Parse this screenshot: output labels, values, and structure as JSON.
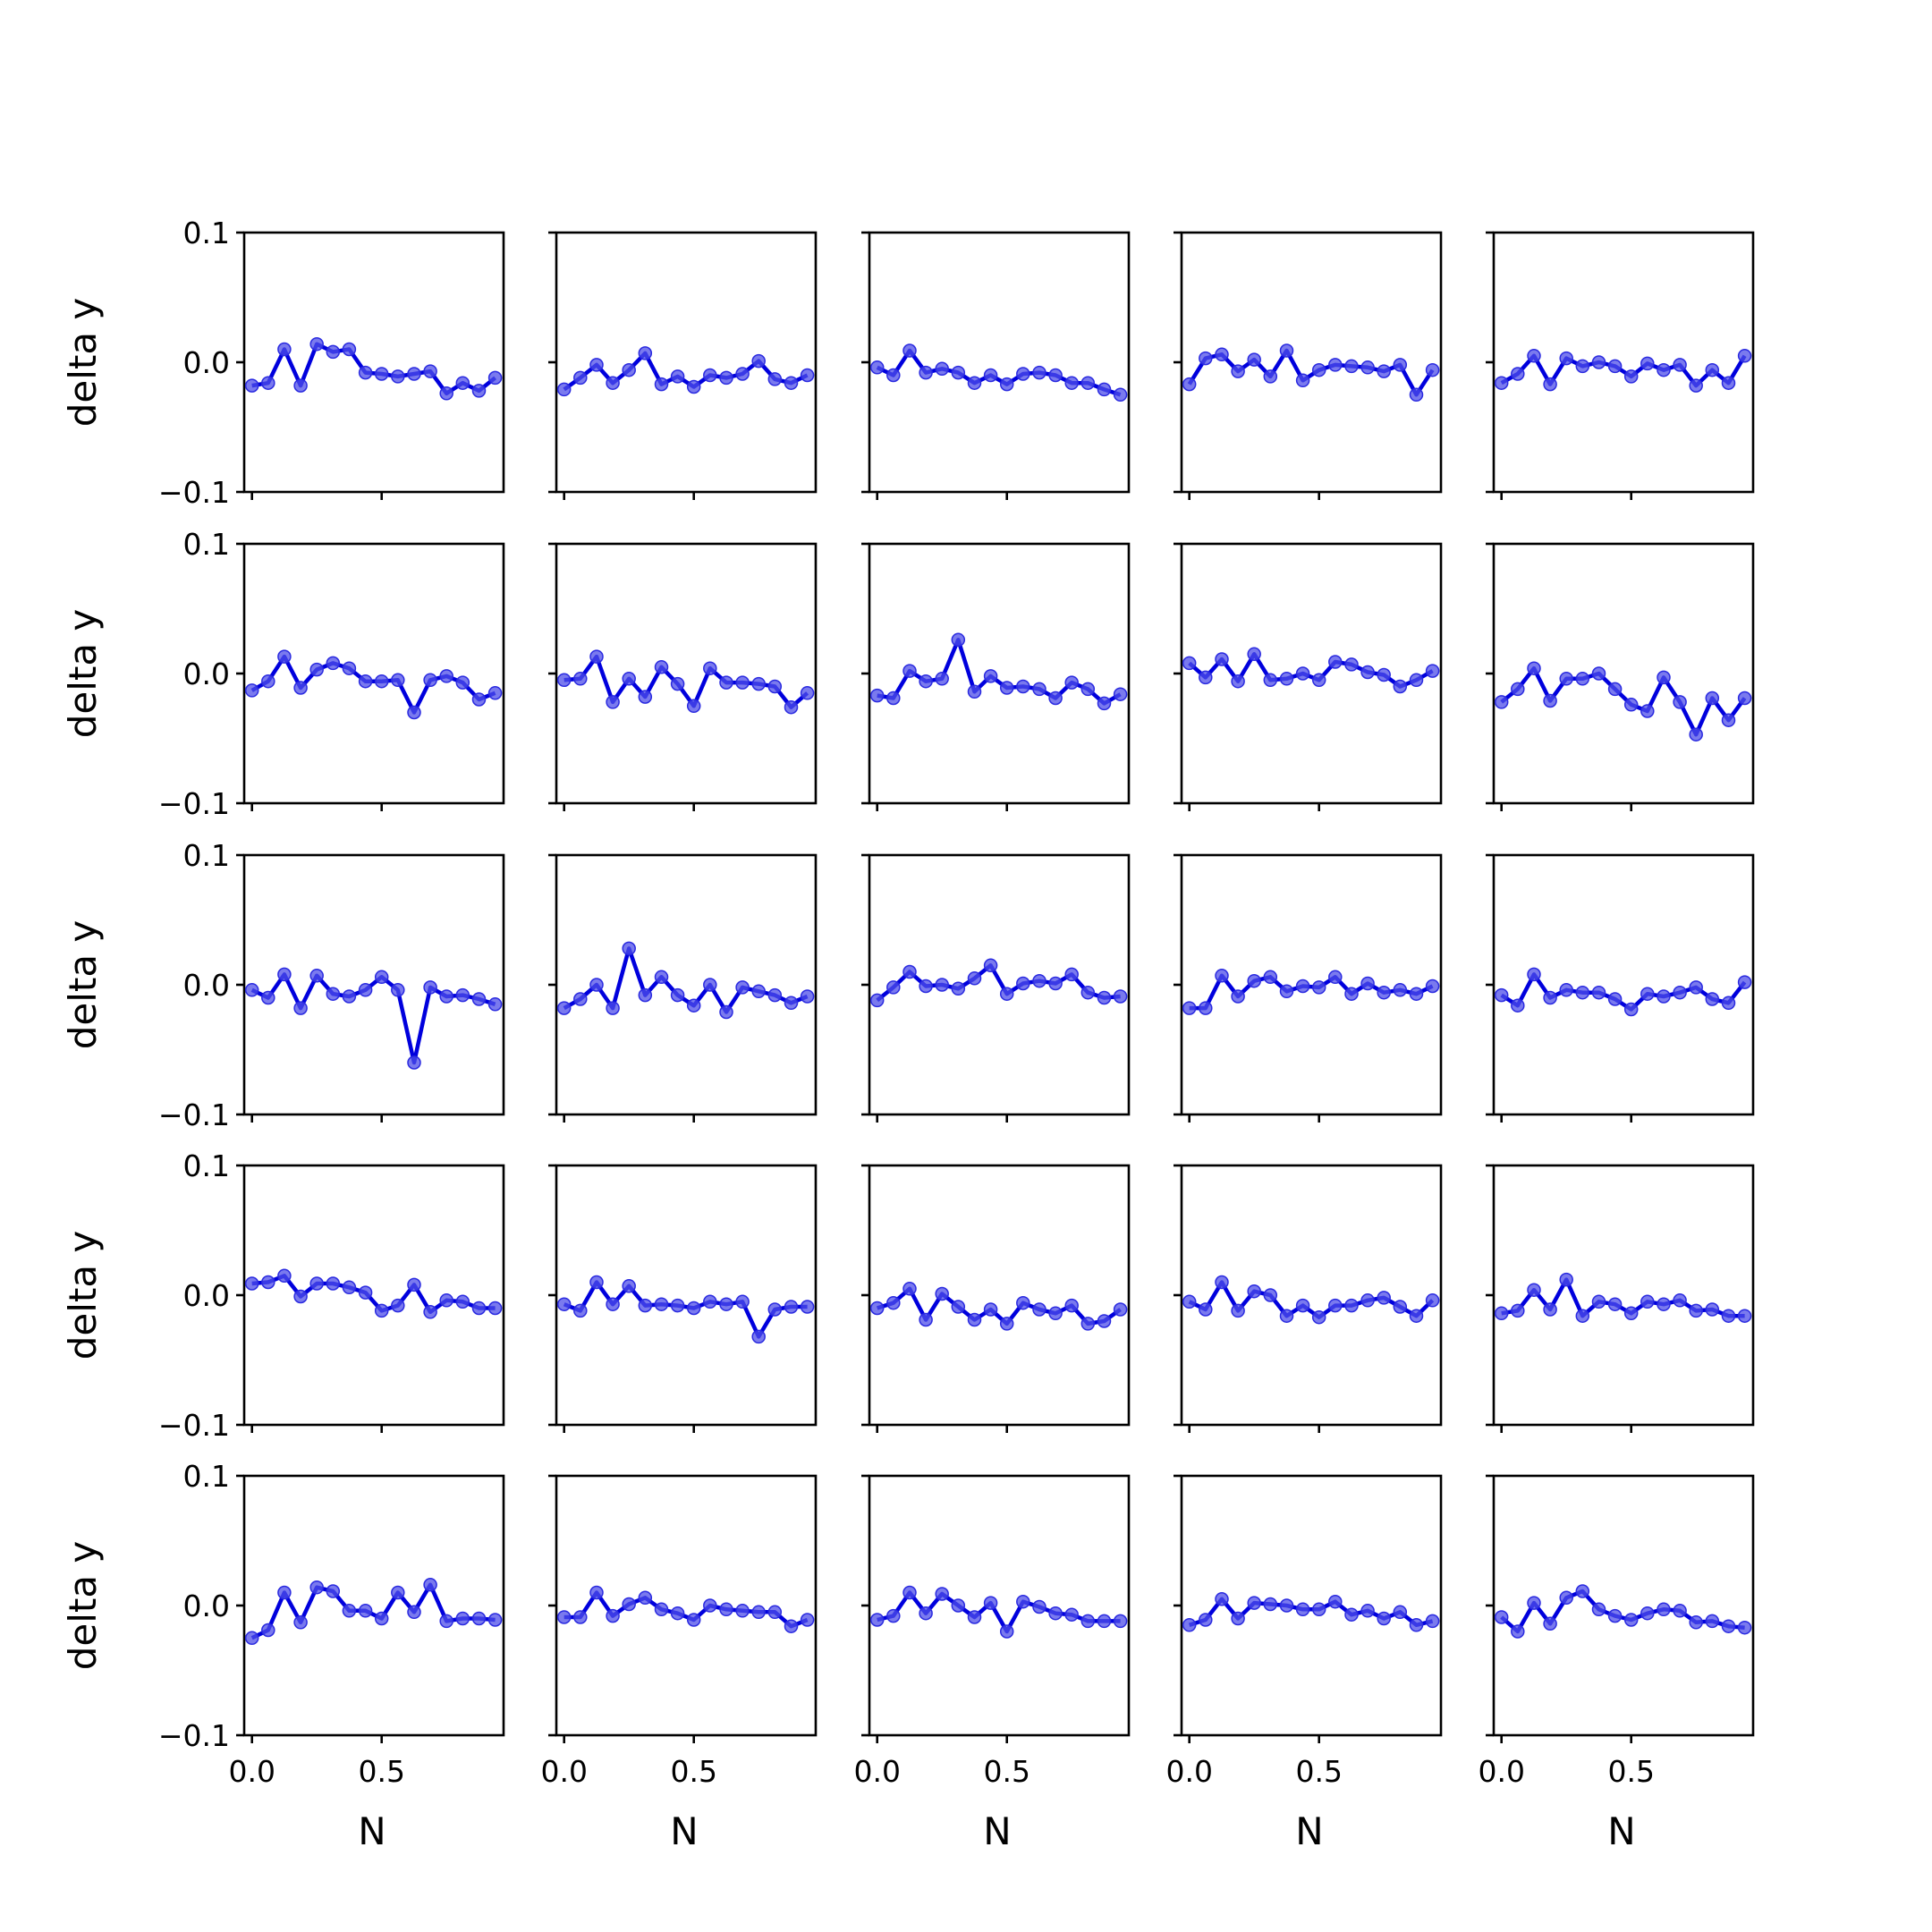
{
  "chart_data": {
    "type": "line",
    "grid": false,
    "layout": "5x5 small multiples, shared axes",
    "xlabel": "N",
    "ylabel": "delta y",
    "xlim": [
      -0.03,
      0.97
    ],
    "ylim": [
      -0.1,
      0.1
    ],
    "xticks": [
      0.0,
      0.5
    ],
    "xtick_labels": [
      "0.0",
      "0.5"
    ],
    "yticks": [
      0.1,
      0.0,
      -0.1
    ],
    "ytick_labels": [
      "0.1",
      "0.0",
      "−0.1"
    ],
    "x": [
      0.0,
      0.0625,
      0.125,
      0.1875,
      0.25,
      0.3125,
      0.375,
      0.4375,
      0.5,
      0.5625,
      0.625,
      0.6875,
      0.75,
      0.8125,
      0.875,
      0.9375
    ],
    "colors": {
      "line": "#0000dd",
      "marker": "#4d4de8"
    },
    "panels": [
      {
        "values": [
          -0.018,
          -0.016,
          0.01,
          -0.018,
          0.014,
          0.008,
          0.01,
          -0.008,
          -0.009,
          -0.011,
          -0.009,
          -0.007,
          -0.024,
          -0.016,
          -0.022,
          -0.012
        ]
      },
      {
        "values": [
          -0.021,
          -0.012,
          -0.002,
          -0.016,
          -0.006,
          0.007,
          -0.017,
          -0.011,
          -0.019,
          -0.01,
          -0.012,
          -0.009,
          0.001,
          -0.013,
          -0.016,
          -0.01
        ]
      },
      {
        "values": [
          -0.004,
          -0.01,
          0.009,
          -0.008,
          -0.005,
          -0.008,
          -0.016,
          -0.01,
          -0.017,
          -0.009,
          -0.008,
          -0.01,
          -0.016,
          -0.016,
          -0.021,
          -0.025
        ]
      },
      {
        "values": [
          -0.017,
          0.003,
          0.006,
          -0.007,
          0.002,
          -0.011,
          0.009,
          -0.014,
          -0.006,
          -0.002,
          -0.003,
          -0.004,
          -0.007,
          -0.002,
          -0.025,
          -0.006
        ]
      },
      {
        "values": [
          -0.016,
          -0.009,
          0.005,
          -0.017,
          0.003,
          -0.003,
          0.0,
          -0.003,
          -0.011,
          -0.001,
          -0.006,
          -0.002,
          -0.018,
          -0.006,
          -0.016,
          0.005
        ]
      },
      {
        "values": [
          -0.013,
          -0.006,
          0.013,
          -0.011,
          0.003,
          0.008,
          0.004,
          -0.006,
          -0.006,
          -0.005,
          -0.03,
          -0.005,
          -0.002,
          -0.007,
          -0.02,
          -0.015
        ]
      },
      {
        "values": [
          -0.005,
          -0.004,
          0.013,
          -0.022,
          -0.004,
          -0.018,
          0.005,
          -0.008,
          -0.025,
          0.004,
          -0.007,
          -0.007,
          -0.008,
          -0.01,
          -0.026,
          -0.015
        ]
      },
      {
        "values": [
          -0.017,
          -0.019,
          0.002,
          -0.006,
          -0.004,
          0.026,
          -0.014,
          -0.002,
          -0.011,
          -0.01,
          -0.012,
          -0.019,
          -0.007,
          -0.012,
          -0.023,
          -0.016
        ]
      },
      {
        "values": [
          0.008,
          -0.003,
          0.011,
          -0.006,
          0.015,
          -0.005,
          -0.004,
          0.0,
          -0.005,
          0.009,
          0.007,
          0.001,
          -0.001,
          -0.01,
          -0.005,
          0.002
        ]
      },
      {
        "values": [
          -0.022,
          -0.012,
          0.004,
          -0.021,
          -0.004,
          -0.004,
          0.0,
          -0.012,
          -0.024,
          -0.029,
          -0.003,
          -0.022,
          -0.047,
          -0.019,
          -0.036,
          -0.019
        ]
      },
      {
        "values": [
          -0.004,
          -0.01,
          0.008,
          -0.018,
          0.007,
          -0.007,
          -0.009,
          -0.004,
          0.006,
          -0.004,
          -0.06,
          -0.002,
          -0.009,
          -0.008,
          -0.011,
          -0.015
        ]
      },
      {
        "values": [
          -0.018,
          -0.011,
          0.0,
          -0.018,
          0.028,
          -0.008,
          0.006,
          -0.008,
          -0.016,
          0.0,
          -0.021,
          -0.002,
          -0.005,
          -0.008,
          -0.014,
          -0.009
        ]
      },
      {
        "values": [
          -0.012,
          -0.002,
          0.01,
          -0.001,
          0.0,
          -0.003,
          0.005,
          0.015,
          -0.007,
          0.001,
          0.003,
          0.001,
          0.008,
          -0.006,
          -0.01,
          -0.009
        ]
      },
      {
        "values": [
          -0.018,
          -0.018,
          0.007,
          -0.009,
          0.003,
          0.006,
          -0.005,
          -0.001,
          -0.002,
          0.006,
          -0.007,
          0.001,
          -0.006,
          -0.004,
          -0.007,
          -0.001
        ]
      },
      {
        "values": [
          -0.008,
          -0.016,
          0.008,
          -0.01,
          -0.004,
          -0.006,
          -0.006,
          -0.011,
          -0.019,
          -0.007,
          -0.009,
          -0.006,
          -0.002,
          -0.011,
          -0.014,
          0.002
        ]
      },
      {
        "values": [
          0.009,
          0.01,
          0.015,
          -0.001,
          0.009,
          0.009,
          0.006,
          0.002,
          -0.012,
          -0.008,
          0.008,
          -0.013,
          -0.004,
          -0.005,
          -0.01,
          -0.01
        ]
      },
      {
        "values": [
          -0.007,
          -0.012,
          0.01,
          -0.007,
          0.007,
          -0.008,
          -0.007,
          -0.008,
          -0.01,
          -0.005,
          -0.007,
          -0.005,
          -0.032,
          -0.011,
          -0.009,
          -0.009
        ]
      },
      {
        "values": [
          -0.01,
          -0.006,
          0.005,
          -0.019,
          0.001,
          -0.009,
          -0.019,
          -0.011,
          -0.022,
          -0.006,
          -0.011,
          -0.014,
          -0.008,
          -0.022,
          -0.02,
          -0.011
        ]
      },
      {
        "values": [
          -0.005,
          -0.011,
          0.01,
          -0.012,
          0.003,
          0.0,
          -0.016,
          -0.008,
          -0.017,
          -0.008,
          -0.008,
          -0.004,
          -0.002,
          -0.009,
          -0.016,
          -0.004
        ]
      },
      {
        "values": [
          -0.014,
          -0.012,
          0.004,
          -0.011,
          0.012,
          -0.016,
          -0.005,
          -0.007,
          -0.014,
          -0.005,
          -0.007,
          -0.004,
          -0.012,
          -0.011,
          -0.016,
          -0.016
        ]
      },
      {
        "values": [
          -0.025,
          -0.019,
          0.01,
          -0.013,
          0.014,
          0.011,
          -0.004,
          -0.004,
          -0.01,
          0.01,
          -0.005,
          0.016,
          -0.012,
          -0.01,
          -0.01,
          -0.011
        ]
      },
      {
        "values": [
          -0.009,
          -0.009,
          0.01,
          -0.008,
          0.001,
          0.006,
          -0.003,
          -0.006,
          -0.011,
          0.0,
          -0.003,
          -0.004,
          -0.005,
          -0.005,
          -0.016,
          -0.011
        ]
      },
      {
        "values": [
          -0.011,
          -0.008,
          0.01,
          -0.006,
          0.009,
          0.0,
          -0.009,
          0.002,
          -0.02,
          0.003,
          -0.001,
          -0.006,
          -0.007,
          -0.012,
          -0.012,
          -0.012
        ]
      },
      {
        "values": [
          -0.015,
          -0.011,
          0.005,
          -0.01,
          0.002,
          0.001,
          0.0,
          -0.003,
          -0.003,
          0.003,
          -0.007,
          -0.004,
          -0.01,
          -0.005,
          -0.015,
          -0.012
        ]
      },
      {
        "values": [
          -0.009,
          -0.02,
          0.002,
          -0.014,
          0.006,
          0.011,
          -0.003,
          -0.008,
          -0.011,
          -0.006,
          -0.003,
          -0.004,
          -0.013,
          -0.012,
          -0.016,
          -0.017
        ]
      }
    ]
  }
}
